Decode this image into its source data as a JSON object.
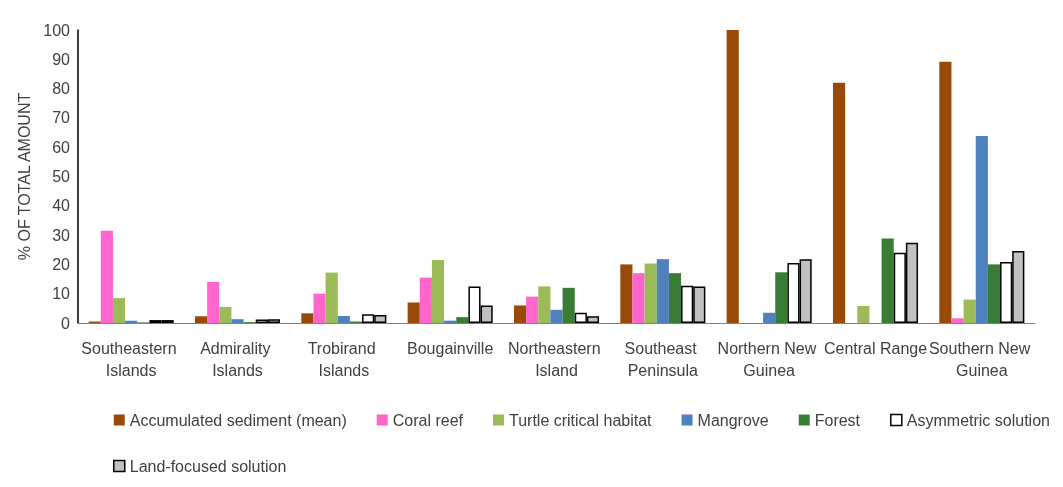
{
  "chart_data": {
    "type": "bar",
    "ylabel": "% OF TOTAL AMOUNT",
    "categories": [
      "Southeastern Islands",
      "Admirality Islands",
      "Trobirand Islands",
      "Bougainville",
      "Northeastern Island",
      "Southeast Peninsula",
      "Northern New Guinea",
      "Central Range",
      "Southern New Guinea"
    ],
    "series": [
      {
        "name": "Accumulated sediment (mean)",
        "color": "#994a08",
        "values": [
          0.5,
          2.3,
          3.3,
          7,
          6,
          20,
          100,
          82,
          89.2
        ]
      },
      {
        "name": "Coral reef",
        "color": "#ff66cc",
        "values": [
          31.5,
          14,
          10,
          15.5,
          9,
          17,
          0,
          0,
          1.6
        ]
      },
      {
        "name": "Turtle critical habitat",
        "color": "#9bbb59",
        "values": [
          8.5,
          5.5,
          17.2,
          21.5,
          12.5,
          20.3,
          0,
          5.8,
          8
        ]
      },
      {
        "name": "Mangrove",
        "color": "#4f81bd",
        "values": [
          0.8,
          1.3,
          2.4,
          0.8,
          4.5,
          21.8,
          3.5,
          0,
          63.8
        ]
      },
      {
        "name": "Forest",
        "color": "#387c35",
        "values": [
          0.2,
          0.3,
          0.5,
          2,
          12,
          17,
          17.3,
          28.8,
          20
        ]
      },
      {
        "name": "Asymmetric solution",
        "color": "#ffffff",
        "values": [
          1,
          1.2,
          3,
          12.5,
          3.5,
          12.7,
          20.5,
          24,
          20.8
        ]
      },
      {
        "name": "Land-focused solution",
        "color": "#c0c0c0",
        "values": [
          1,
          1.3,
          2.7,
          6,
          2.3,
          12.5,
          21.8,
          27.4,
          24.6
        ]
      }
    ],
    "ylim": [
      0,
      100
    ],
    "yticks": [
      0,
      10,
      20,
      30,
      40,
      50,
      60,
      70,
      80,
      90,
      100
    ],
    "grid": false,
    "legend": "bottom"
  }
}
